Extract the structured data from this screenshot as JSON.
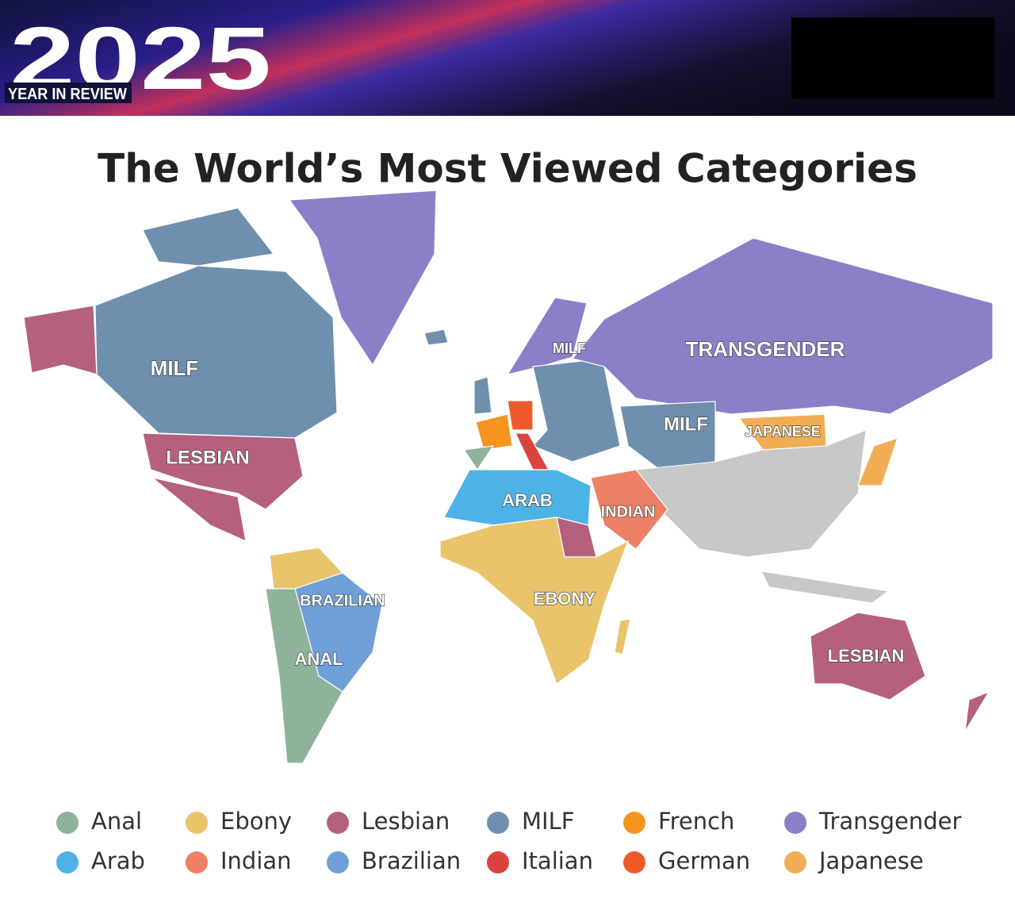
{
  "header": {
    "year": "2025",
    "subtitle": "YEAR IN REVIEW"
  },
  "title": "The World’s Most Viewed Categories",
  "map_labels": [
    "MILF",
    "LESBIAN",
    "BRAZILIAN",
    "ANAL",
    "MILF",
    "TRANSGENDER",
    "MILF",
    "JAPANESE",
    "ARAB",
    "INDIAN",
    "EBONY",
    "LESBIAN"
  ],
  "legend": [
    {
      "label": "Anal",
      "color": "#8fb39a"
    },
    {
      "label": "Ebony",
      "color": "#e9c46a"
    },
    {
      "label": "Lesbian",
      "color": "#b5607f"
    },
    {
      "label": "MILF",
      "color": "#6f8fae"
    },
    {
      "label": "French",
      "color": "#f5941e"
    },
    {
      "label": "Transgender",
      "color": "#8b7fc7"
    },
    {
      "label": "Arab",
      "color": "#4db3e6"
    },
    {
      "label": "Indian",
      "color": "#ee8066"
    },
    {
      "label": "Brazilian",
      "color": "#6fa0d8"
    },
    {
      "label": "Italian",
      "color": "#d9443f"
    },
    {
      "label": "German",
      "color": "#ee5a2a"
    },
    {
      "label": "Japanese",
      "color": "#f2ae55"
    }
  ]
}
